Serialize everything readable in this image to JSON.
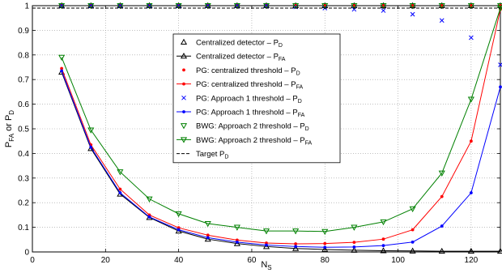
{
  "chart_data": {
    "type": "line",
    "xlabel": "N",
    "xlabel_sub": "S",
    "ylabel_parts": [
      "P",
      "FA",
      " or P",
      "D"
    ],
    "xlim": [
      0,
      128
    ],
    "ylim": [
      0,
      1
    ],
    "xticks": [
      0,
      20,
      40,
      60,
      80,
      100,
      120
    ],
    "yticks": [
      0,
      0.1,
      0.2,
      0.3,
      0.4,
      0.5,
      0.6,
      0.7,
      0.8,
      0.9,
      1
    ],
    "grid": true,
    "legend_position": "top-center",
    "series": [
      {
        "name": "Centralized detector – P",
        "name_sub": "D",
        "color": "#000000",
        "marker": "triangle-up",
        "line": "none",
        "x": [
          8,
          16,
          24,
          32,
          40,
          48,
          56,
          64,
          72,
          80,
          88,
          96,
          104,
          112,
          120,
          128
        ],
        "y": [
          1,
          1,
          1,
          1,
          1,
          1,
          1,
          1,
          1,
          1,
          1,
          1,
          1,
          1,
          1,
          1
        ]
      },
      {
        "name": "Centralized detector – P",
        "name_sub": "FA",
        "color": "#000000",
        "marker": "triangle-up",
        "line": "solid",
        "x": [
          8,
          16,
          24,
          32,
          40,
          48,
          56,
          64,
          72,
          80,
          88,
          96,
          104,
          112,
          120,
          128
        ],
        "y": [
          0.73,
          0.42,
          0.235,
          0.14,
          0.085,
          0.052,
          0.034,
          0.022,
          0.014,
          0.01,
          0.007,
          0.005,
          0.004,
          0.003,
          0.003,
          0.003
        ]
      },
      {
        "name": "PG: centralized threshold – P",
        "name_sub": "D",
        "color": "#ff0000",
        "marker": "dot",
        "line": "none",
        "x": [
          8,
          16,
          24,
          32,
          40,
          48,
          56,
          64,
          72,
          80,
          88,
          96,
          104,
          112,
          120,
          128
        ],
        "y": [
          1,
          1,
          1,
          1,
          1,
          1,
          1,
          1,
          1,
          1,
          1,
          1,
          1,
          1,
          1,
          1
        ]
      },
      {
        "name": "PG: centralized threshold – P",
        "name_sub": "FA",
        "color": "#ff0000",
        "marker": "dot",
        "line": "solid",
        "x": [
          8,
          16,
          24,
          32,
          40,
          48,
          56,
          64,
          72,
          80,
          88,
          96,
          104,
          112,
          120,
          128
        ],
        "y": [
          0.745,
          0.435,
          0.255,
          0.15,
          0.098,
          0.068,
          0.048,
          0.036,
          0.033,
          0.034,
          0.039,
          0.052,
          0.09,
          0.225,
          0.45,
          0.985
        ]
      },
      {
        "name": "PG: Approach 1 threshold – P",
        "name_sub": "D",
        "color": "#0000ff",
        "marker": "x",
        "line": "none",
        "x": [
          8,
          16,
          24,
          32,
          40,
          48,
          56,
          64,
          72,
          80,
          88,
          96,
          104,
          112,
          120,
          128
        ],
        "y": [
          1,
          1,
          1,
          1,
          1,
          1,
          1,
          1,
          0.995,
          0.99,
          0.985,
          0.98,
          0.965,
          0.94,
          0.87,
          0.76
        ]
      },
      {
        "name": "PG: Approach 1 threshold – P",
        "name_sub": "FA",
        "color": "#0000ff",
        "marker": "dot",
        "line": "solid",
        "x": [
          8,
          16,
          24,
          32,
          40,
          48,
          56,
          64,
          72,
          80,
          88,
          96,
          104,
          112,
          120,
          128
        ],
        "y": [
          0.735,
          0.425,
          0.24,
          0.142,
          0.09,
          0.058,
          0.04,
          0.028,
          0.022,
          0.019,
          0.02,
          0.026,
          0.04,
          0.105,
          0.24,
          0.67
        ]
      },
      {
        "name": "BWG: Approach 2 threshold – P",
        "name_sub": "D",
        "color": "#008000",
        "marker": "triangle-down",
        "line": "none",
        "x": [
          8,
          16,
          24,
          32,
          40,
          48,
          56,
          64,
          72,
          80,
          88,
          96,
          104,
          112,
          120,
          128
        ],
        "y": [
          1,
          1,
          1,
          1,
          1,
          1,
          1,
          1,
          1,
          1,
          1,
          1,
          1,
          1,
          1,
          1
        ]
      },
      {
        "name": "BWG: Approach 2 threshold – P",
        "name_sub": "FA",
        "color": "#008000",
        "marker": "triangle-down",
        "line": "solid",
        "x": [
          8,
          16,
          24,
          32,
          40,
          48,
          56,
          64,
          72,
          80,
          88,
          96,
          104,
          112,
          120,
          128
        ],
        "y": [
          0.79,
          0.495,
          0.325,
          0.215,
          0.155,
          0.115,
          0.1,
          0.085,
          0.085,
          0.083,
          0.1,
          0.122,
          0.175,
          0.32,
          0.62,
          0.99
        ]
      },
      {
        "name": "Target P",
        "name_sub": "D",
        "color": "#000000",
        "marker": "none",
        "line": "dashed",
        "x": [
          0,
          128
        ],
        "y": [
          0.99,
          0.99
        ]
      }
    ]
  }
}
